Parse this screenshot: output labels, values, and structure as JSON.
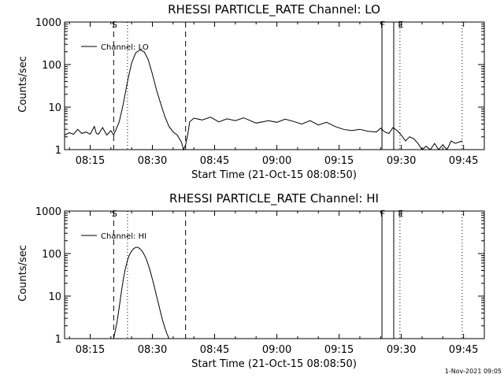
{
  "chart_data": [
    {
      "type": "line",
      "title": "RHESSI PARTICLE_RATE Channel: LO",
      "xlabel": "Start Time (21-Oct-15 08:08:50)",
      "ylabel": "Counts/sec",
      "y_scale": "log",
      "ylim": [
        1,
        1000
      ],
      "xlim": [
        "08:08:50",
        "09:50:00"
      ],
      "x_ticks": [
        "08:15",
        "08:30",
        "08:45",
        "09:00",
        "09:15",
        "09:30",
        "09:45"
      ],
      "y_ticks": [
        "1",
        "10",
        "100",
        "1000"
      ],
      "legend": {
        "placement": "top-left",
        "entries": [
          "Channel: LO"
        ]
      },
      "markers": [
        {
          "label": "S",
          "time": "08:20:40",
          "style": "dashed"
        },
        {
          "label": "",
          "time": "08:24:00",
          "style": "dotted"
        },
        {
          "label": "",
          "time": "08:38:00",
          "style": "dashed"
        },
        {
          "label": "F",
          "time": "09:25:20",
          "style": "solid"
        },
        {
          "label": "",
          "time": "09:28:10",
          "style": "solid"
        },
        {
          "label": "E",
          "time": "09:29:40",
          "style": "dotted"
        },
        {
          "label": "",
          "time": "09:44:40",
          "style": "dotted"
        }
      ],
      "series": [
        {
          "name": "Channel: LO",
          "x": [
            "08:08:50",
            "08:10:00",
            "08:11:00",
            "08:12:00",
            "08:13:00",
            "08:14:00",
            "08:15:00",
            "08:16:00",
            "08:16:30",
            "08:17:00",
            "08:18:00",
            "08:19:00",
            "08:20:00",
            "08:20:40",
            "08:22:00",
            "08:23:00",
            "08:24:00",
            "08:25:00",
            "08:26:00",
            "08:27:00",
            "08:28:00",
            "08:29:00",
            "08:30:00",
            "08:31:00",
            "08:32:00",
            "08:33:00",
            "08:34:00",
            "08:35:00",
            "08:36:00",
            "08:37:00",
            "08:37:30",
            "08:38:00",
            "08:38:30",
            "08:39:00",
            "08:40:00",
            "08:42:00",
            "08:44:00",
            "08:46:00",
            "08:48:00",
            "08:50:00",
            "08:52:00",
            "08:55:00",
            "08:58:00",
            "09:00:00",
            "09:02:00",
            "09:04:00",
            "09:06:00",
            "09:08:00",
            "09:10:00",
            "09:12:00",
            "09:14:00",
            "09:16:00",
            "09:18:00",
            "09:20:00",
            "09:22:00",
            "09:24:00",
            "09:25:00",
            "09:26:00",
            "09:27:00",
            "09:28:00",
            "09:29:00",
            "09:30:00",
            "09:31:00",
            "09:32:00",
            "09:33:00",
            "09:34:00",
            "09:35:00",
            "09:36:00",
            "09:37:00",
            "09:38:00",
            "09:39:00",
            "09:40:00",
            "09:41:00",
            "09:42:00",
            "09:43:00",
            "09:44:40"
          ],
          "y": [
            2.2,
            2.5,
            2.3,
            3.0,
            2.4,
            2.6,
            2.3,
            3.5,
            2.4,
            2.3,
            3.3,
            2.2,
            2.8,
            2.2,
            4.5,
            12,
            40,
            110,
            190,
            220,
            200,
            130,
            60,
            25,
            12,
            6,
            3.5,
            2.6,
            2.2,
            1.5,
            1.0,
            1.3,
            2.2,
            4.5,
            5.5,
            5.0,
            5.8,
            4.5,
            5.3,
            4.8,
            5.6,
            4.2,
            4.8,
            4.4,
            5.2,
            4.6,
            4.0,
            4.8,
            3.8,
            4.4,
            3.5,
            3.0,
            2.8,
            3.0,
            2.7,
            2.6,
            3.2,
            2.6,
            2.4,
            3.3,
            2.8,
            2.2,
            1.6,
            2.0,
            1.8,
            1.4,
            1.0,
            1.2,
            1.0,
            1.4,
            1.0,
            1.3,
            1.0,
            1.6,
            1.4,
            1.6
          ]
        }
      ]
    },
    {
      "type": "line",
      "title": "RHESSI PARTICLE_RATE Channel: HI",
      "xlabel": "Start Time (21-Oct-15 08:08:50)",
      "ylabel": "Counts/sec",
      "y_scale": "log",
      "ylim": [
        1,
        1000
      ],
      "xlim": [
        "08:08:50",
        "09:50:00"
      ],
      "x_ticks": [
        "08:15",
        "08:30",
        "08:45",
        "09:00",
        "09:15",
        "09:30",
        "09:45"
      ],
      "y_ticks": [
        "1",
        "10",
        "100",
        "1000"
      ],
      "legend": {
        "placement": "top-left",
        "entries": [
          "Channel: HI"
        ]
      },
      "markers": [
        {
          "label": "S",
          "time": "08:20:40",
          "style": "dashed"
        },
        {
          "label": "",
          "time": "08:24:00",
          "style": "dotted"
        },
        {
          "label": "",
          "time": "08:38:00",
          "style": "dashed"
        },
        {
          "label": "F",
          "time": "09:25:20",
          "style": "solid"
        },
        {
          "label": "",
          "time": "09:28:10",
          "style": "solid"
        },
        {
          "label": "E",
          "time": "09:29:40",
          "style": "dotted"
        },
        {
          "label": "",
          "time": "09:44:40",
          "style": "dotted"
        }
      ],
      "series": [
        {
          "name": "Channel: HI",
          "x": [
            "08:20:40",
            "08:21:30",
            "08:22:00",
            "08:22:30",
            "08:23:00",
            "08:23:30",
            "08:24:00",
            "08:24:30",
            "08:25:00",
            "08:25:30",
            "08:26:00",
            "08:26:30",
            "08:27:00",
            "08:27:30",
            "08:28:00",
            "08:28:30",
            "08:29:00",
            "08:29:30",
            "08:30:00",
            "08:30:30",
            "08:31:00",
            "08:31:30",
            "08:32:00",
            "08:32:30",
            "08:33:00",
            "08:33:30",
            "08:34:00",
            "08:34:30",
            "08:35:00"
          ],
          "y": [
            1.0,
            2.5,
            5.5,
            12,
            25,
            45,
            70,
            95,
            115,
            130,
            140,
            140,
            130,
            115,
            95,
            75,
            55,
            38,
            25,
            16,
            10,
            6.5,
            4,
            2.6,
            1.8,
            1.3,
            1.0,
            1.0,
            1.0
          ]
        }
      ]
    }
  ],
  "timestamp": "1-Nov-2021 09:05"
}
